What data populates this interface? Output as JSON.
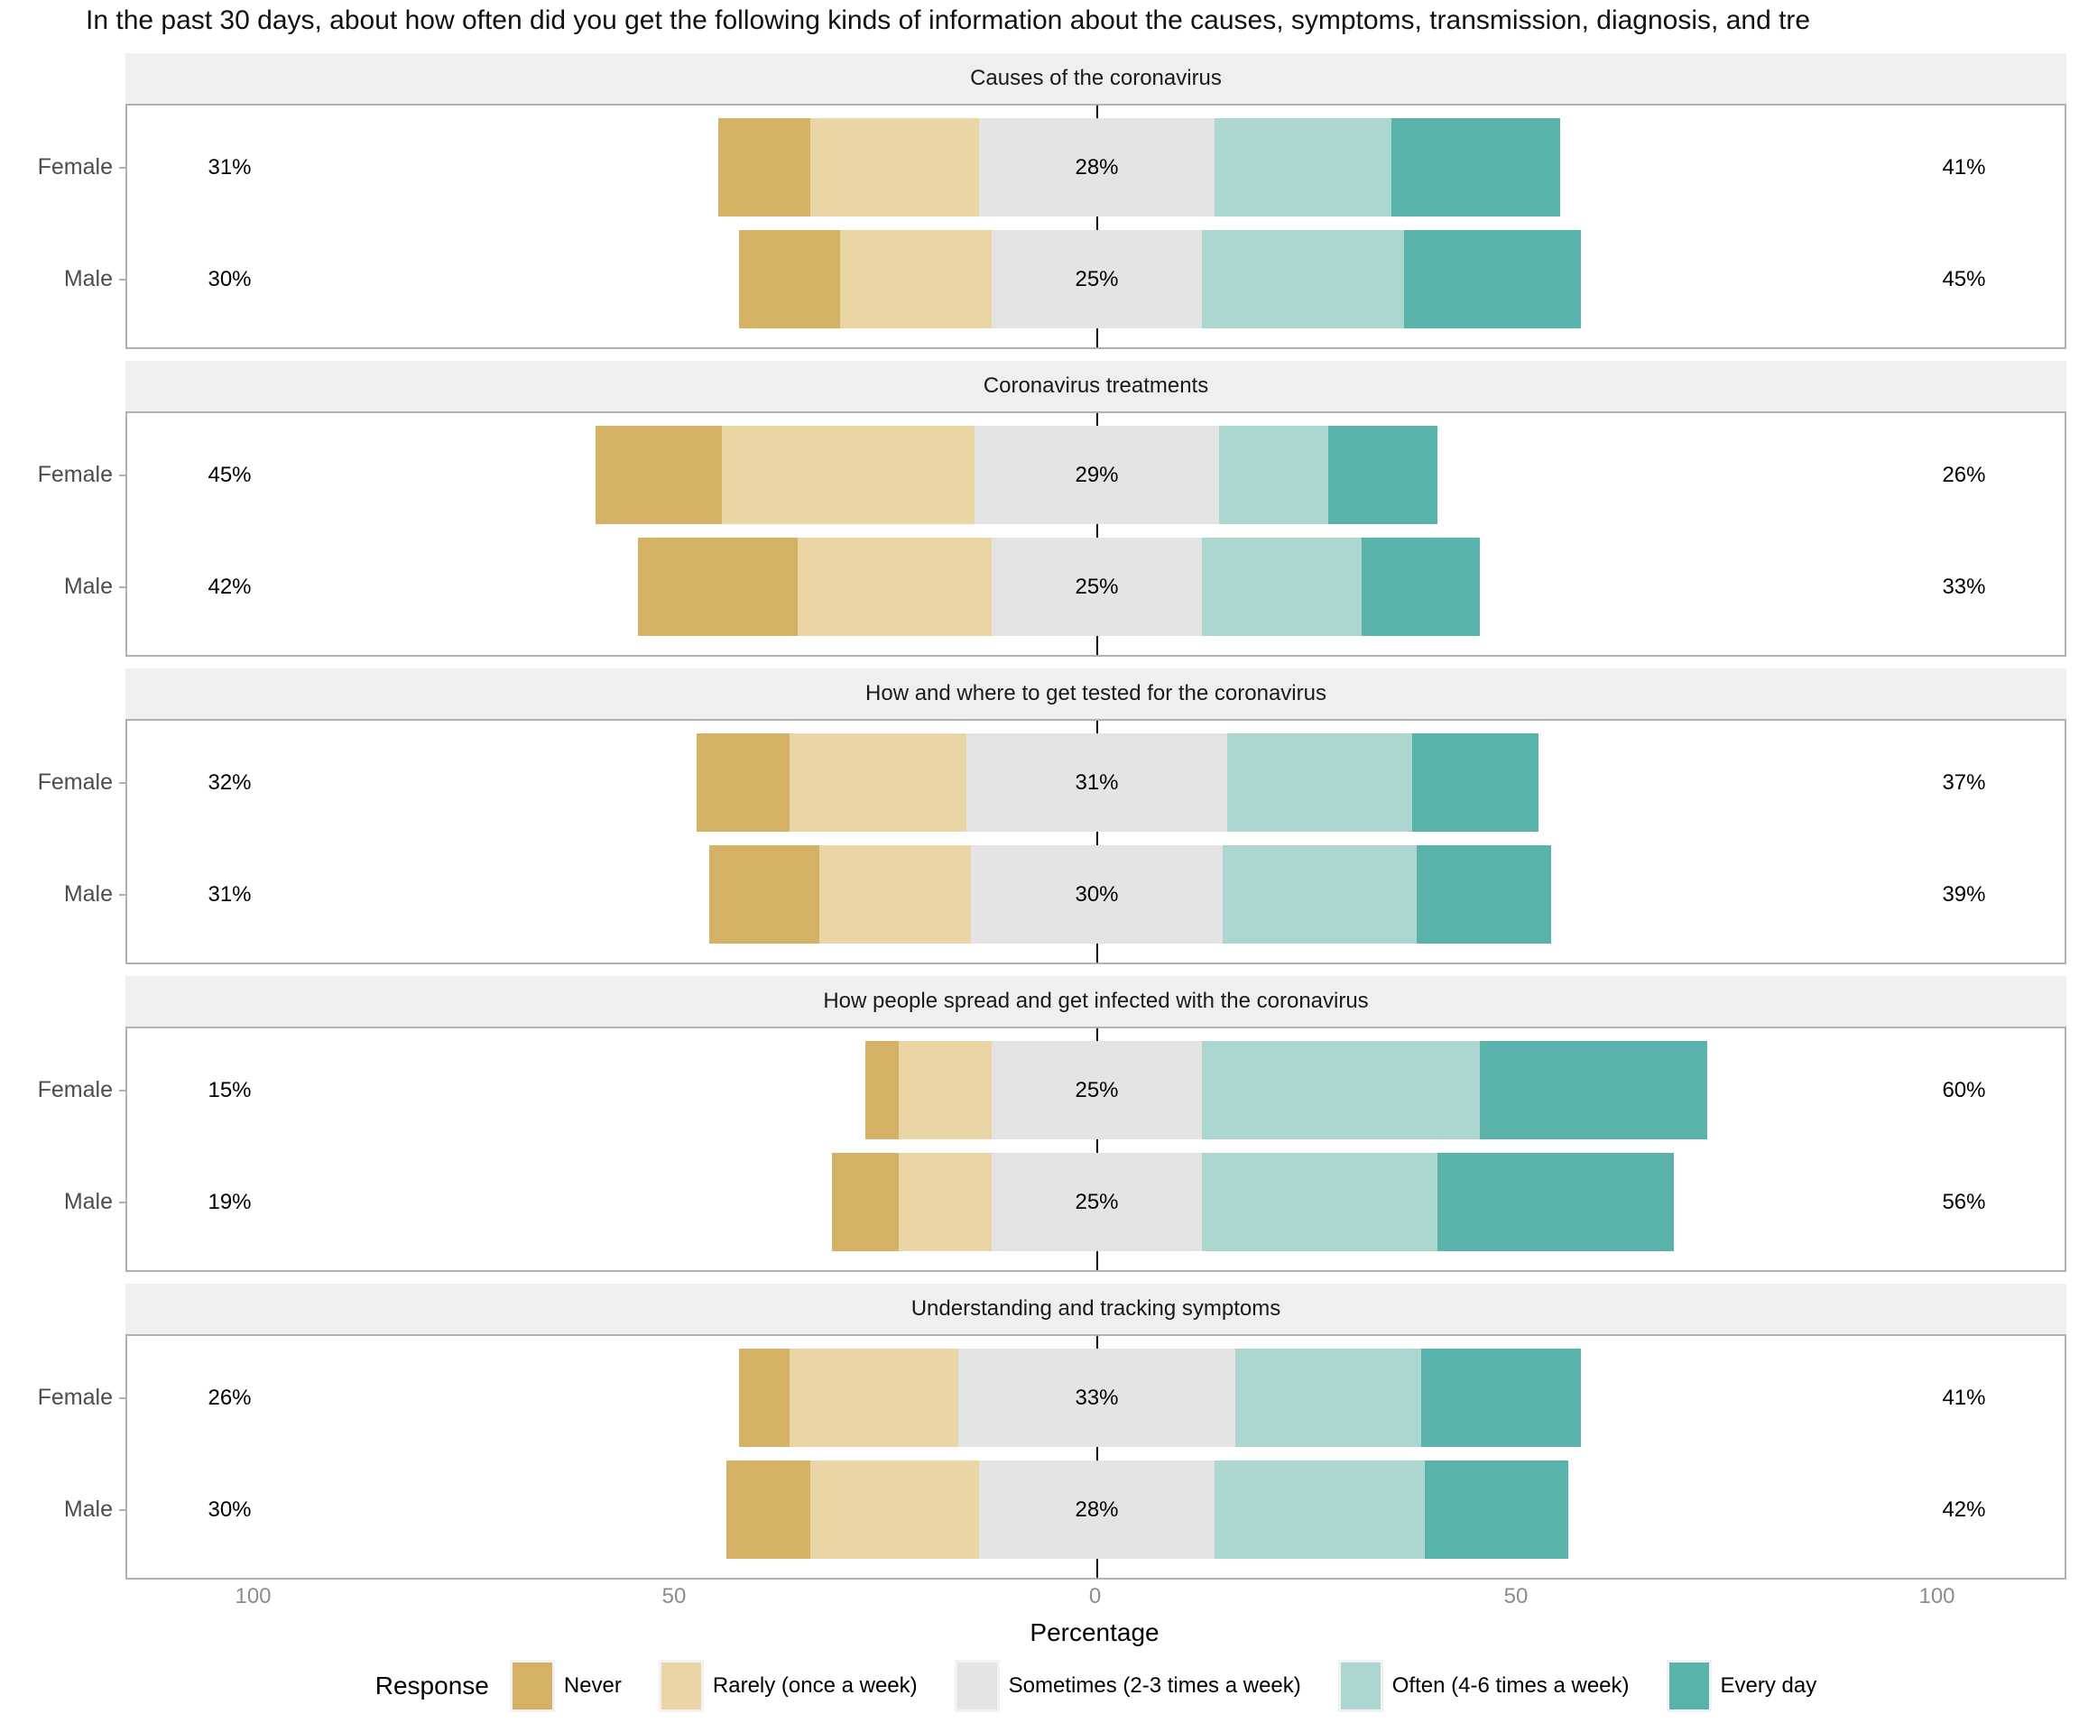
{
  "title": "In the past 30 days, about how often did you get the following kinds of information about the causes, symptoms, transmission, diagnosis, and tre",
  "axis": {
    "xlabel": "Percentage",
    "tick_labels": [
      "100",
      "50",
      "0",
      "50",
      "100"
    ],
    "tick_values": [
      -100,
      -50,
      0,
      50,
      100
    ],
    "xlim": [
      -115.3,
      115.6
    ]
  },
  "legend": {
    "title": "Response",
    "items": [
      {
        "label": "Never",
        "color": "#D5B165"
      },
      {
        "label": "Rarely (once a week)",
        "color": "#E9D6A4"
      },
      {
        "label": "Sometimes (2-3 times a week)",
        "color": "#E4E4E4"
      },
      {
        "label": "Often (4-6 times a week)",
        "color": "#ABD7D0"
      },
      {
        "label": "Every day",
        "color": "#5AB3AA"
      }
    ]
  },
  "style_colors": {
    "strip_background": "#EFEFEF",
    "panel_border": "#B0B0B0",
    "axis_tick_text": "#8C8C8C",
    "group_label_text": "#4D4D4D",
    "zero_line": "#000000"
  },
  "chart_data": {
    "type": "bar",
    "variant": "diverging-stacked-likert",
    "orientation": "horizontal",
    "categories": [
      "Never",
      "Rarely (once a week)",
      "Sometimes (2-3 times a week)",
      "Often (4-6 times a week)",
      "Every day"
    ],
    "center_category": "Sometimes (2-3 times a week)",
    "value_label_offsets": [
      -103,
      0,
      103
    ],
    "facets": [
      {
        "title": "Causes of the coronavirus",
        "rows": [
          {
            "group": "Female",
            "left_total_label": "31%",
            "center_label": "28%",
            "right_total_label": "41%",
            "values": [
              11,
              20,
              28,
              21,
              20
            ]
          },
          {
            "group": "Male",
            "left_total_label": "30%",
            "center_label": "25%",
            "right_total_label": "45%",
            "values": [
              12,
              18,
              25,
              24,
              21
            ]
          }
        ]
      },
      {
        "title": "Coronavirus treatments",
        "rows": [
          {
            "group": "Female",
            "left_total_label": "45%",
            "center_label": "29%",
            "right_total_label": "26%",
            "values": [
              15,
              30,
              29,
              13,
              13
            ]
          },
          {
            "group": "Male",
            "left_total_label": "42%",
            "center_label": "25%",
            "right_total_label": "33%",
            "values": [
              19,
              23,
              25,
              19,
              14
            ]
          }
        ]
      },
      {
        "title": "How and where to get tested for the coronavirus",
        "rows": [
          {
            "group": "Female",
            "left_total_label": "32%",
            "center_label": "31%",
            "right_total_label": "37%",
            "values": [
              11,
              21,
              31,
              22,
              15
            ]
          },
          {
            "group": "Male",
            "left_total_label": "31%",
            "center_label": "30%",
            "right_total_label": "39%",
            "values": [
              13,
              18,
              30,
              23,
              16
            ]
          }
        ]
      },
      {
        "title": "How people spread and get infected with the coronavirus",
        "rows": [
          {
            "group": "Female",
            "left_total_label": "15%",
            "center_label": "25%",
            "right_total_label": "60%",
            "values": [
              4,
              11,
              25,
              33,
              27
            ]
          },
          {
            "group": "Male",
            "left_total_label": "19%",
            "center_label": "25%",
            "right_total_label": "56%",
            "values": [
              8,
              11,
              25,
              28,
              28
            ]
          }
        ]
      },
      {
        "title": "Understanding and tracking symptoms",
        "rows": [
          {
            "group": "Female",
            "left_total_label": "26%",
            "center_label": "33%",
            "right_total_label": "41%",
            "values": [
              6,
              20,
              33,
              22,
              19
            ]
          },
          {
            "group": "Male",
            "left_total_label": "30%",
            "center_label": "28%",
            "right_total_label": "42%",
            "values": [
              10,
              20,
              28,
              25,
              17
            ]
          }
        ]
      }
    ]
  }
}
